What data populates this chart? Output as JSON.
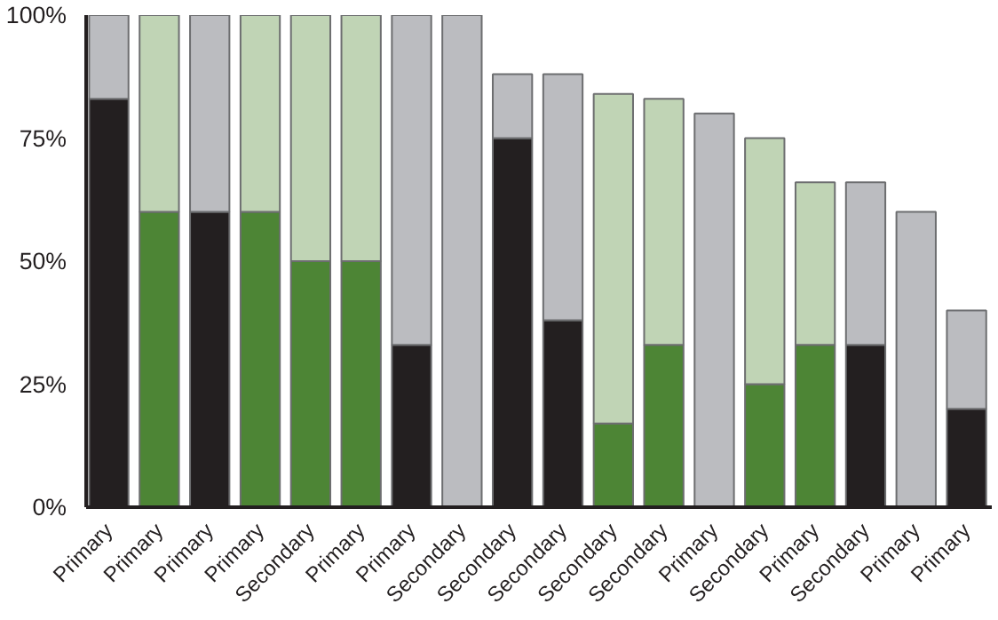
{
  "chart_data": {
    "type": "bar",
    "stacked": true,
    "categories": [
      "Primary",
      "Primary",
      "Primary",
      "Primary",
      "Secondary",
      "Primary",
      "Primary",
      "Secondary",
      "Secondary",
      "Secondary",
      "Secondary",
      "Secondary",
      "Primary",
      "Secondary",
      "Primary",
      "Secondary",
      "Primary",
      "Primary"
    ],
    "series": [
      {
        "values": [
          83,
          60,
          60,
          60,
          50,
          50,
          33,
          0,
          75,
          38,
          17,
          33,
          0,
          25,
          33,
          33,
          0,
          20
        ],
        "colors": [
          "#231f20",
          "#4d8535",
          "#231f20",
          "#4d8535",
          "#4d8535",
          "#4d8535",
          "#231f20",
          "#231f20",
          "#231f20",
          "#231f20",
          "#4d8535",
          "#4d8535",
          "#231f20",
          "#4d8535",
          "#4d8535",
          "#231f20",
          "#231f20",
          "#231f20"
        ]
      },
      {
        "values": [
          17,
          40,
          40,
          40,
          50,
          50,
          67,
          100,
          13,
          50,
          67,
          50,
          80,
          50,
          33,
          33,
          60,
          20
        ],
        "colors": [
          "#bbbcc0",
          "#c0d4b5",
          "#bbbcc0",
          "#c0d4b5",
          "#c0d4b5",
          "#c0d4b5",
          "#bbbcc0",
          "#bbbcc0",
          "#bbbcc0",
          "#bbbcc0",
          "#c0d4b5",
          "#c0d4b5",
          "#bbbcc0",
          "#c0d4b5",
          "#c0d4b5",
          "#bbbcc0",
          "#bbbcc0",
          "#bbbcc0"
        ]
      }
    ],
    "ylim": [
      0,
      100
    ],
    "yticks": [
      {
        "value": 0,
        "label": "0%"
      },
      {
        "value": 25,
        "label": "25%"
      },
      {
        "value": 50,
        "label": "50%"
      },
      {
        "value": 75,
        "label": "75%"
      },
      {
        "value": 100,
        "label": "100%"
      }
    ],
    "grid": false
  }
}
